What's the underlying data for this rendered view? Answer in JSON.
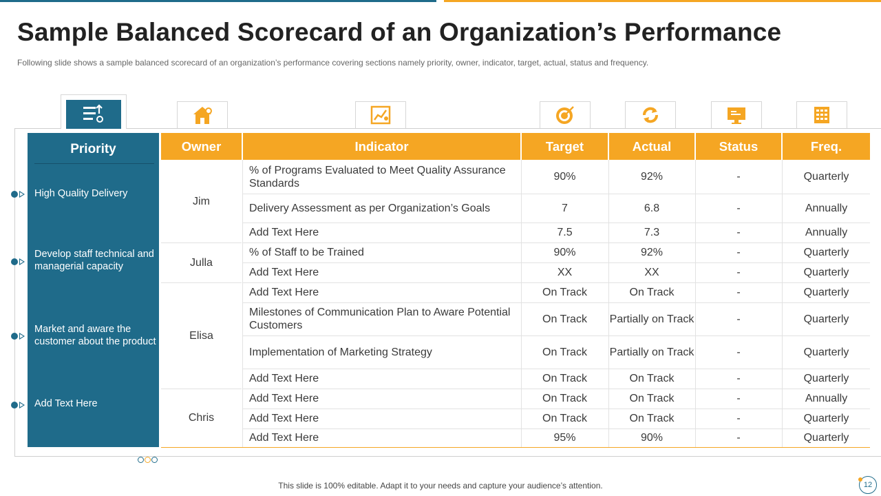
{
  "title": "Sample Balanced Scorecard of an Organization’s Performance",
  "subtitle": "Following slide shows a sample balanced scorecard of an organization’s performance  covering sections namely priority, owner, indicator, target, actual, status and frequency.",
  "footer": "This slide is 100% editable. Adapt it to your needs and capture your audience’s attention.",
  "page_number": "12",
  "icons": [
    "priority-list-icon",
    "house-icon",
    "chart-icon",
    "target-icon",
    "refresh-icon",
    "monitor-icon",
    "calendar-icon"
  ],
  "colors": {
    "primary": "#1f6b8a",
    "accent": "#f5a623"
  },
  "priority": {
    "header": "Priority",
    "items": [
      "High Quality Delivery",
      "Develop staff technical and managerial capacity",
      "Market and aware the customer about the product",
      "Add Text Here"
    ]
  },
  "table": {
    "headers": {
      "owner": "Owner",
      "indicator": "Indicator",
      "target": "Target",
      "actual": "Actual",
      "status": "Status",
      "freq": "Freq."
    },
    "owners": [
      "Jim",
      "Julla",
      "Elisa",
      "Chris"
    ],
    "rows": [
      {
        "indicator": "% of Programs Evaluated to Meet Quality Assurance Standards",
        "target": "90%",
        "actual": "92%",
        "status": "-",
        "freq": "Quarterly"
      },
      {
        "indicator": "Delivery Assessment as per Organization’s Goals",
        "target": "7",
        "actual": "6.8",
        "status": "-",
        "freq": "Annually"
      },
      {
        "indicator": "Add Text Here",
        "target": "7.5",
        "actual": "7.3",
        "status": "-",
        "freq": "Annually"
      },
      {
        "indicator": "% of Staff to be Trained",
        "target": "90%",
        "actual": "92%",
        "status": "-",
        "freq": "Quarterly"
      },
      {
        "indicator": "Add Text Here",
        "target": "XX",
        "actual": "XX",
        "status": "-",
        "freq": "Quarterly"
      },
      {
        "indicator": "Add Text Here",
        "target": "On Track",
        "actual": "On Track",
        "status": "-",
        "freq": "Quarterly"
      },
      {
        "indicator": "Milestones of Communication Plan to Aware Potential Customers",
        "target": "On Track",
        "actual": "Partially on Track",
        "status": "-",
        "freq": "Quarterly"
      },
      {
        "indicator": "Implementation  of Marketing Strategy",
        "target": "On Track",
        "actual": "Partially on Track",
        "status": "-",
        "freq": "Quarterly"
      },
      {
        "indicator": "Add Text Here",
        "target": "On Track",
        "actual": "On Track",
        "status": "-",
        "freq": "Quarterly"
      },
      {
        "indicator": "Add Text Here",
        "target": "On Track",
        "actual": "On Track",
        "status": "-",
        "freq": "Annually"
      },
      {
        "indicator": "Add Text Here",
        "target": "On Track",
        "actual": "On Track",
        "status": "-",
        "freq": "Quarterly"
      },
      {
        "indicator": "Add Text Here",
        "target": "95%",
        "actual": "90%",
        "status": "-",
        "freq": "Quarterly"
      }
    ]
  }
}
